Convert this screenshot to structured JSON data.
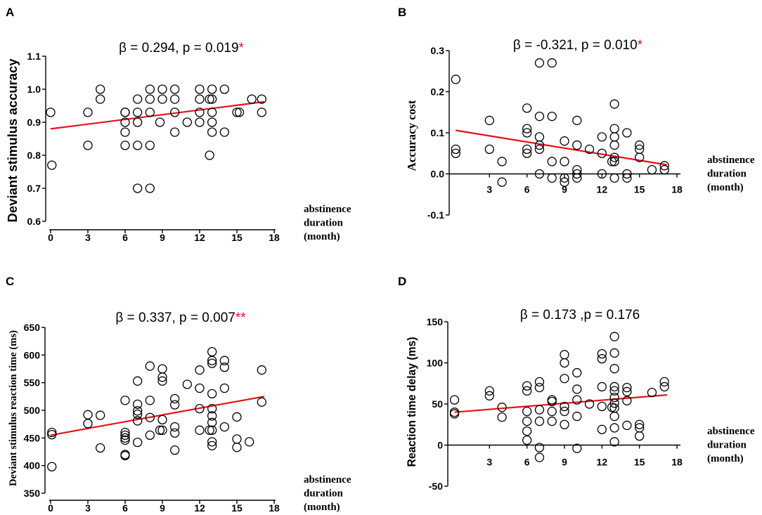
{
  "colors": {
    "regression": "#e8101a",
    "significance": "#e8101a",
    "marker_stroke": "#000000"
  },
  "chart_data": [
    {
      "type": "scatter",
      "panel_label": "A",
      "title": "β = 0.294, p = 0.019",
      "significance": "*",
      "ylabel": "Deviant stimulus accuracy",
      "xlabel_lines": [
        "abstinence",
        "duration",
        "(month)"
      ],
      "xlim": [
        0,
        18
      ],
      "ylim": [
        0.6,
        1.1
      ],
      "xticks": [
        0,
        3,
        6,
        9,
        12,
        15,
        18
      ],
      "xtick_labels": [
        "0",
        "3",
        "6",
        "9",
        "12",
        "15",
        "18"
      ],
      "yticks": [
        0.6,
        0.7,
        0.8,
        0.9,
        1.0,
        1.1
      ],
      "ytick_labels": [
        "0.6",
        "0.7",
        "0.8",
        "0.9",
        "1.0",
        "1.1"
      ],
      "points": [
        [
          0,
          0.93
        ],
        [
          0.1,
          0.77
        ],
        [
          3,
          0.93
        ],
        [
          3,
          0.83
        ],
        [
          4,
          1.0
        ],
        [
          4,
          0.97
        ],
        [
          6,
          0.93
        ],
        [
          6,
          0.93
        ],
        [
          6,
          0.9
        ],
        [
          6,
          0.87
        ],
        [
          6,
          0.83
        ],
        [
          7,
          0.97
        ],
        [
          7,
          0.93
        ],
        [
          7,
          0.9
        ],
        [
          7,
          0.83
        ],
        [
          7,
          0.7
        ],
        [
          8,
          1.0
        ],
        [
          8,
          0.97
        ],
        [
          8,
          0.93
        ],
        [
          8,
          0.83
        ],
        [
          8,
          0.7
        ],
        [
          8.8,
          0.9
        ],
        [
          9,
          1.0
        ],
        [
          9,
          0.97
        ],
        [
          10,
          1.0
        ],
        [
          10,
          0.97
        ],
        [
          10,
          0.93
        ],
        [
          10,
          0.87
        ],
        [
          11,
          0.9
        ],
        [
          12,
          1.0
        ],
        [
          12,
          0.97
        ],
        [
          12,
          0.93
        ],
        [
          12,
          0.9
        ],
        [
          12.8,
          0.97
        ],
        [
          12.8,
          0.8
        ],
        [
          13,
          1.0
        ],
        [
          13,
          0.97
        ],
        [
          13,
          0.93
        ],
        [
          13,
          0.9
        ],
        [
          13,
          0.87
        ],
        [
          14,
          1.0
        ],
        [
          14,
          0.87
        ],
        [
          15,
          0.93
        ],
        [
          15.2,
          0.93
        ],
        [
          16.2,
          0.97
        ],
        [
          17,
          0.97
        ],
        [
          17,
          0.93
        ]
      ],
      "regression_line": [
        [
          0,
          0.88
        ],
        [
          17.2,
          0.962
        ]
      ]
    },
    {
      "type": "scatter",
      "panel_label": "B",
      "title": "β = -0.321, p = 0.010",
      "significance": "*",
      "ylabel": "Accuracy cost",
      "xlabel_lines": [
        "abstinence",
        "duration",
        "(month)"
      ],
      "xlim": [
        0,
        18
      ],
      "ylim": [
        -0.1,
        0.3
      ],
      "xticks": [
        3,
        6,
        9,
        12,
        15,
        18
      ],
      "xtick_labels": [
        "3",
        "6",
        "9",
        "12",
        "15",
        "18"
      ],
      "yticks": [
        -0.1,
        0.0,
        0.1,
        0.2,
        0.3
      ],
      "ytick_labels": [
        "-0.1",
        "0.0",
        "0.1",
        "0.2",
        "0.3"
      ],
      "points": [
        [
          0.3,
          0.23
        ],
        [
          0.3,
          0.06
        ],
        [
          0.3,
          0.05
        ],
        [
          3,
          0.13
        ],
        [
          3,
          0.06
        ],
        [
          4,
          0.03
        ],
        [
          4,
          -0.02
        ],
        [
          6,
          0.16
        ],
        [
          6,
          0.11
        ],
        [
          6,
          0.1
        ],
        [
          6,
          0.06
        ],
        [
          6,
          0.05
        ],
        [
          7,
          0.27
        ],
        [
          7,
          0.14
        ],
        [
          7,
          0.09
        ],
        [
          7,
          0.07
        ],
        [
          7,
          0.06
        ],
        [
          7,
          0.0
        ],
        [
          8,
          0.27
        ],
        [
          8,
          0.14
        ],
        [
          8,
          0.03
        ],
        [
          8,
          -0.01
        ],
        [
          9,
          0.08
        ],
        [
          9,
          0.03
        ],
        [
          9,
          -0.01
        ],
        [
          9,
          -0.02
        ],
        [
          10,
          0.13
        ],
        [
          10,
          0.07
        ],
        [
          10,
          0.01
        ],
        [
          10,
          0.0
        ],
        [
          10,
          -0.01
        ],
        [
          11,
          0.06
        ],
        [
          12,
          0.09
        ],
        [
          12,
          0.05
        ],
        [
          12,
          0.0
        ],
        [
          12.8,
          0.03
        ],
        [
          13,
          0.17
        ],
        [
          13,
          0.11
        ],
        [
          13,
          0.09
        ],
        [
          13,
          0.07
        ],
        [
          13,
          0.04
        ],
        [
          13,
          0.03
        ],
        [
          13,
          -0.01
        ],
        [
          14,
          0.1
        ],
        [
          14,
          0.0
        ],
        [
          14,
          -0.01
        ],
        [
          15,
          0.07
        ],
        [
          15,
          0.06
        ],
        [
          15,
          0.04
        ],
        [
          16,
          0.01
        ],
        [
          17,
          0.02
        ],
        [
          17,
          0.01
        ]
      ],
      "regression_line": [
        [
          0.3,
          0.106
        ],
        [
          17.2,
          0.022
        ]
      ]
    },
    {
      "type": "scatter",
      "panel_label": "C",
      "title": "β = 0.337, p = 0.007",
      "significance": "**",
      "ylabel": "Deviant stimulus reaction time (ms)",
      "xlabel_lines": [
        "abstinence",
        "duration",
        "(month)"
      ],
      "xlim": [
        0,
        18
      ],
      "ylim": [
        350,
        650
      ],
      "xticks": [
        0,
        3,
        6,
        9,
        12,
        15,
        18
      ],
      "xtick_labels": [
        "0",
        "3",
        "6",
        "9",
        "12",
        "15",
        "18"
      ],
      "yticks": [
        350,
        400,
        450,
        500,
        550,
        600,
        650
      ],
      "ytick_labels": [
        "350",
        "400",
        "450",
        "500",
        "550",
        "600",
        "650"
      ],
      "points": [
        [
          0.1,
          460
        ],
        [
          0.1,
          456
        ],
        [
          0.1,
          398
        ],
        [
          3,
          492
        ],
        [
          3,
          476
        ],
        [
          4,
          491
        ],
        [
          4,
          432
        ],
        [
          6,
          518
        ],
        [
          6,
          460
        ],
        [
          6,
          455
        ],
        [
          6,
          450
        ],
        [
          6,
          446
        ],
        [
          6,
          420
        ],
        [
          6,
          418
        ],
        [
          7,
          553
        ],
        [
          7,
          511
        ],
        [
          7,
          499
        ],
        [
          7,
          493
        ],
        [
          7,
          481
        ],
        [
          7,
          442
        ],
        [
          8,
          580
        ],
        [
          8,
          518
        ],
        [
          8,
          487
        ],
        [
          8,
          455
        ],
        [
          8.8,
          464
        ],
        [
          9,
          575
        ],
        [
          9,
          560
        ],
        [
          9,
          553
        ],
        [
          9,
          483
        ],
        [
          9,
          464
        ],
        [
          10,
          521
        ],
        [
          10,
          510
        ],
        [
          10,
          470
        ],
        [
          10,
          459
        ],
        [
          10,
          428
        ],
        [
          11,
          547
        ],
        [
          12,
          573
        ],
        [
          12,
          540
        ],
        [
          12,
          503
        ],
        [
          12,
          464
        ],
        [
          12.8,
          464
        ],
        [
          13,
          606
        ],
        [
          13,
          590
        ],
        [
          13,
          585
        ],
        [
          13,
          530
        ],
        [
          13,
          503
        ],
        [
          13,
          490
        ],
        [
          13,
          478
        ],
        [
          13,
          464
        ],
        [
          13,
          443
        ],
        [
          13,
          436
        ],
        [
          14,
          590
        ],
        [
          14,
          578
        ],
        [
          14,
          540
        ],
        [
          14,
          470
        ],
        [
          15,
          488
        ],
        [
          15,
          448
        ],
        [
          15,
          433
        ],
        [
          16,
          443
        ],
        [
          17,
          573
        ],
        [
          17,
          515
        ]
      ],
      "regression_line": [
        [
          0,
          455
        ],
        [
          17.2,
          525
        ]
      ]
    },
    {
      "type": "scatter",
      "panel_label": "D",
      "title": "β = 0.173 ,p = 0.176",
      "ylabel": "Reaction time delay (ms)",
      "xlabel_lines": [
        "abstinence",
        "duration",
        "(month)"
      ],
      "xlim": [
        0,
        18
      ],
      "ylim": [
        -50,
        150
      ],
      "xticks": [
        3,
        6,
        9,
        12,
        15,
        18
      ],
      "xtick_labels": [
        "3",
        "6",
        "9",
        "12",
        "15",
        "18"
      ],
      "yticks": [
        -50,
        0,
        50,
        100,
        150
      ],
      "ytick_labels": [
        "-50",
        "0",
        "50",
        "100",
        "150"
      ],
      "points": [
        [
          0.2,
          55
        ],
        [
          0.2,
          40
        ],
        [
          0.2,
          38
        ],
        [
          3,
          66
        ],
        [
          3,
          60
        ],
        [
          4,
          46
        ],
        [
          4,
          34
        ],
        [
          6,
          72
        ],
        [
          6,
          66
        ],
        [
          6,
          41
        ],
        [
          6,
          29
        ],
        [
          6,
          17
        ],
        [
          6,
          6
        ],
        [
          7,
          77
        ],
        [
          7,
          70
        ],
        [
          7,
          43
        ],
        [
          7,
          29
        ],
        [
          7,
          -3
        ],
        [
          7,
          -15
        ],
        [
          8,
          55
        ],
        [
          8,
          53
        ],
        [
          8,
          41
        ],
        [
          8,
          29
        ],
        [
          9,
          110
        ],
        [
          9,
          100
        ],
        [
          9,
          81
        ],
        [
          9,
          47
        ],
        [
          9,
          41
        ],
        [
          9,
          25
        ],
        [
          10,
          88
        ],
        [
          10,
          68
        ],
        [
          10,
          55
        ],
        [
          10,
          35
        ],
        [
          10,
          -4
        ],
        [
          11,
          50
        ],
        [
          12,
          111
        ],
        [
          12,
          105
        ],
        [
          12,
          71
        ],
        [
          12,
          47
        ],
        [
          12,
          19
        ],
        [
          12.8,
          46
        ],
        [
          13,
          132
        ],
        [
          13,
          112
        ],
        [
          13,
          93
        ],
        [
          13,
          71
        ],
        [
          13,
          66
        ],
        [
          13,
          58
        ],
        [
          13,
          51
        ],
        [
          13,
          45
        ],
        [
          13,
          35
        ],
        [
          13,
          21
        ],
        [
          13,
          4
        ],
        [
          14,
          70
        ],
        [
          14,
          65
        ],
        [
          14,
          54
        ],
        [
          14,
          24
        ],
        [
          15,
          25
        ],
        [
          15,
          21
        ],
        [
          15,
          11
        ],
        [
          16,
          64
        ],
        [
          17,
          77
        ],
        [
          17,
          71
        ]
      ],
      "regression_line": [
        [
          0.2,
          40
        ],
        [
          17.2,
          61
        ]
      ]
    }
  ]
}
